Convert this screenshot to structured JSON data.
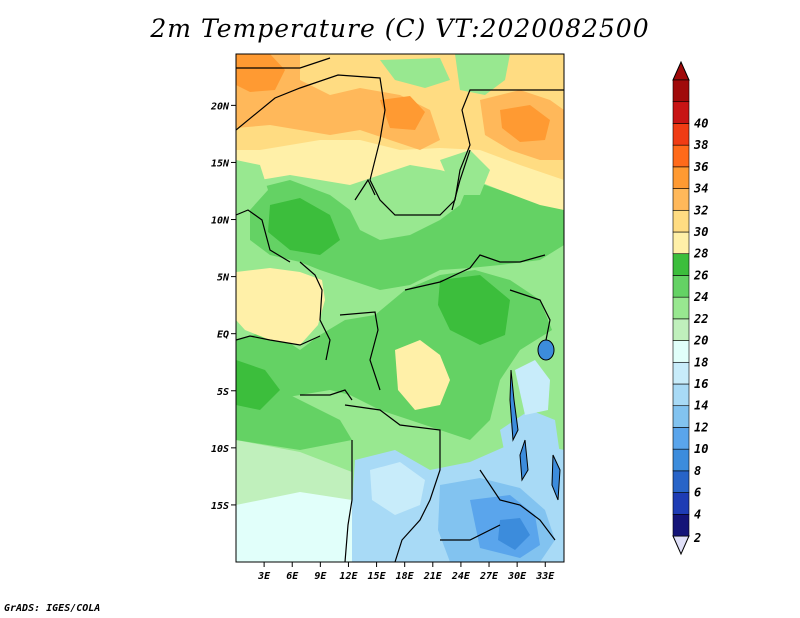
{
  "title": "2m Temperature (C) VT:2020082500",
  "footer": "GrADS: IGES/COLA",
  "map": {
    "lon_range": [
      0,
      35
    ],
    "lat_range": [
      -20,
      24.5
    ],
    "lon_ticks": [
      {
        "value": 3,
        "label": "3E"
      },
      {
        "value": 6,
        "label": "6E"
      },
      {
        "value": 9,
        "label": "9E"
      },
      {
        "value": 12,
        "label": "12E"
      },
      {
        "value": 15,
        "label": "15E"
      },
      {
        "value": 18,
        "label": "18E"
      },
      {
        "value": 21,
        "label": "21E"
      },
      {
        "value": 24,
        "label": "24E"
      },
      {
        "value": 27,
        "label": "27E"
      },
      {
        "value": 30,
        "label": "30E"
      },
      {
        "value": 33,
        "label": "33E"
      }
    ],
    "lat_ticks": [
      {
        "value": 20,
        "label": "20N"
      },
      {
        "value": 15,
        "label": "15N"
      },
      {
        "value": 10,
        "label": "10N"
      },
      {
        "value": 5,
        "label": "5N"
      },
      {
        "value": 0,
        "label": "EQ"
      },
      {
        "value": -5,
        "label": "5S"
      },
      {
        "value": -10,
        "label": "10S"
      },
      {
        "value": -15,
        "label": "15S"
      }
    ]
  },
  "colorbar": {
    "labels": [
      "2",
      "4",
      "6",
      "8",
      "10",
      "12",
      "14",
      "16",
      "18",
      "20",
      "22",
      "24",
      "26",
      "28",
      "30",
      "32",
      "34",
      "36",
      "38",
      "40"
    ],
    "colors": [
      "#141478",
      "#1e3cb4",
      "#2864c8",
      "#3c8cdc",
      "#5aa5ec",
      "#82c3f0",
      "#a8daf6",
      "#c8ecfa",
      "#e1fffa",
      "#c0f0bc",
      "#98e890",
      "#64d264",
      "#3cbe3c",
      "#fff0a8",
      "#ffdc82",
      "#ffb85a",
      "#ff9a32",
      "#ff6a1a",
      "#f03c14",
      "#c81414",
      "#a00a0a"
    ],
    "bottom_arrow_color": "#e0e0f8",
    "top_arrow_color": "#a00a0a"
  }
}
